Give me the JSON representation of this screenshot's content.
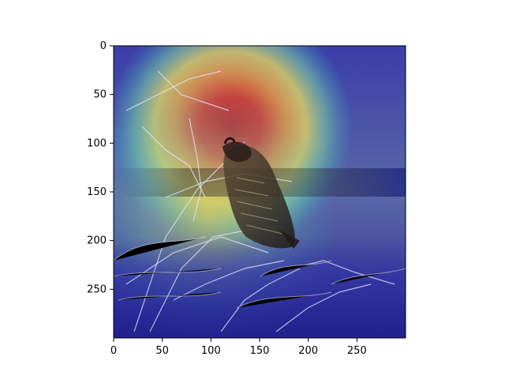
{
  "figure": {
    "description_visible": "",
    "axis_x_ticks": [
      "0",
      "50",
      "100",
      "150",
      "200",
      "250"
    ],
    "axis_y_ticks": [
      "0",
      "50",
      "100",
      "150",
      "200",
      "250"
    ]
  },
  "image": {
    "subject": "quail-on-branches",
    "overlay": "jet-heatmap",
    "colors": {
      "hot": "#d7191c",
      "warm": "#fdae61",
      "mid": "#ffffbf",
      "cool": "#2bc4c8",
      "cold": "#2c2cb4"
    }
  }
}
